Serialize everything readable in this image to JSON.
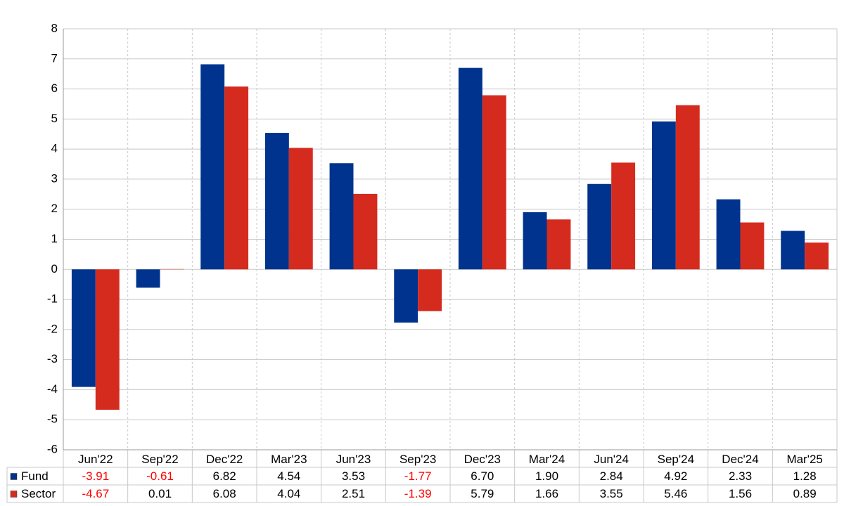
{
  "chart_data": {
    "type": "bar",
    "categories": [
      "Jun'22",
      "Sep'22",
      "Dec'22",
      "Mar'23",
      "Jun'23",
      "Sep'23",
      "Dec'23",
      "Mar'24",
      "Jun'24",
      "Sep'24",
      "Dec'24",
      "Mar'25"
    ],
    "series": [
      {
        "name": "Fund",
        "color": "#00338d",
        "values": [
          -3.91,
          -0.61,
          6.82,
          4.54,
          3.53,
          -1.77,
          6.7,
          1.9,
          2.84,
          4.92,
          2.33,
          1.28
        ],
        "value_labels": [
          "-3.91",
          "-0.61",
          "6.82",
          "4.54",
          "3.53",
          "-1.77",
          "6.70",
          "1.90",
          "2.84",
          "4.92",
          "2.33",
          "1.28"
        ]
      },
      {
        "name": "Sector",
        "color": "#d52b1e",
        "values": [
          -4.67,
          0.01,
          6.08,
          4.04,
          2.51,
          -1.39,
          5.79,
          1.66,
          3.55,
          5.46,
          1.56,
          0.89
        ],
        "value_labels": [
          "-4.67",
          "0.01",
          "6.08",
          "4.04",
          "2.51",
          "-1.39",
          "5.79",
          "1.66",
          "3.55",
          "5.46",
          "1.56",
          "0.89"
        ]
      }
    ],
    "ylim": [
      -6,
      8
    ],
    "yticks": [
      -6,
      -5,
      -4,
      -3,
      -2,
      -1,
      0,
      1,
      2,
      3,
      4,
      5,
      6,
      7,
      8
    ],
    "grid": true
  }
}
